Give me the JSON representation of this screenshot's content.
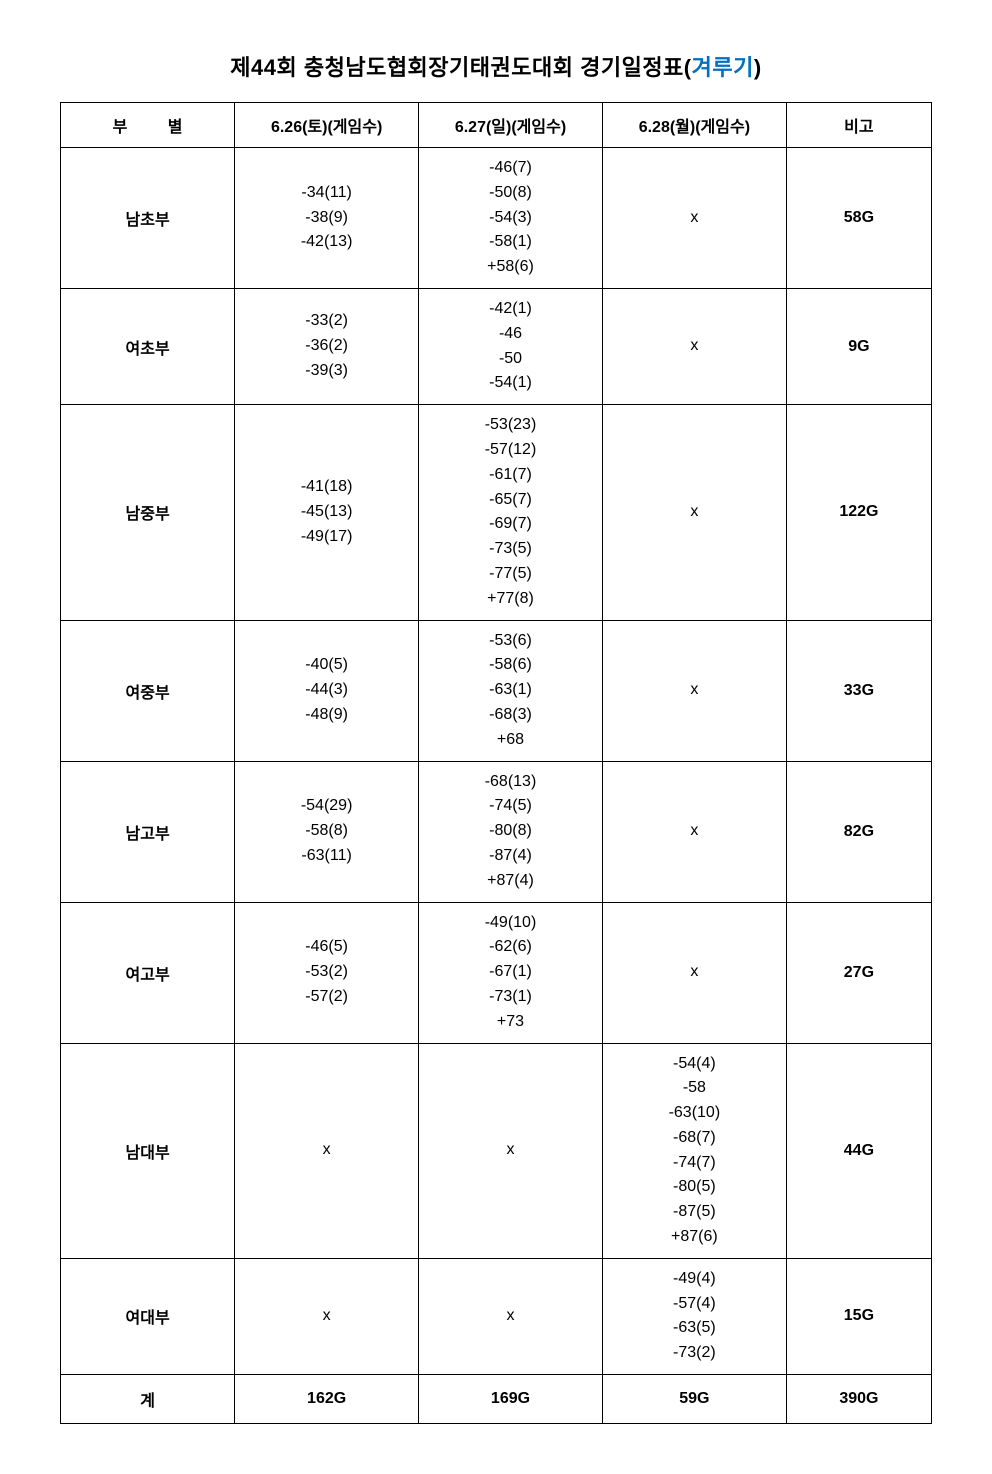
{
  "title_prefix": "제44회 충청남도협회장기태권도대회 경기일정표(",
  "title_accent": "겨루기",
  "title_suffix": ")",
  "columns": [
    "부   별",
    "6.26(토)(게임수)",
    "6.27(일)(게임수)",
    "6.28(월)(게임수)",
    "비고"
  ],
  "rows": [
    {
      "label": "남초부",
      "d1": [
        "-34(11)",
        "-38(9)",
        "-42(13)"
      ],
      "d2": [
        "-46(7)",
        "-50(8)",
        "-54(3)",
        "-58(1)",
        "+58(6)"
      ],
      "d3": [
        "x"
      ],
      "remark": "58G"
    },
    {
      "label": "여초부",
      "d1": [
        "-33(2)",
        "-36(2)",
        "-39(3)"
      ],
      "d2": [
        "-42(1)",
        "-46",
        "-50",
        "-54(1)"
      ],
      "d3": [
        "x"
      ],
      "remark": "9G"
    },
    {
      "label": "남중부",
      "d1": [
        "-41(18)",
        "-45(13)",
        "-49(17)"
      ],
      "d2": [
        "-53(23)",
        "-57(12)",
        "-61(7)",
        "-65(7)",
        "-69(7)",
        "-73(5)",
        "-77(5)",
        "+77(8)"
      ],
      "d3": [
        "x"
      ],
      "remark": "122G"
    },
    {
      "label": "여중부",
      "d1": [
        "-40(5)",
        "-44(3)",
        "-48(9)"
      ],
      "d2": [
        "-53(6)",
        "-58(6)",
        "-63(1)",
        "-68(3)",
        "+68"
      ],
      "d3": [
        "x"
      ],
      "remark": "33G"
    },
    {
      "label": "남고부",
      "d1": [
        "-54(29)",
        "-58(8)",
        "-63(11)"
      ],
      "d2": [
        "-68(13)",
        "-74(5)",
        "-80(8)",
        "-87(4)",
        "+87(4)"
      ],
      "d3": [
        "x"
      ],
      "remark": "82G"
    },
    {
      "label": "여고부",
      "d1": [
        "-46(5)",
        "-53(2)",
        "-57(2)"
      ],
      "d2": [
        "-49(10)",
        "-62(6)",
        "-67(1)",
        "-73(1)",
        "+73"
      ],
      "d3": [
        "x"
      ],
      "remark": "27G"
    },
    {
      "label": "남대부",
      "d1": [
        "x"
      ],
      "d2": [
        "x"
      ],
      "d3": [
        "-54(4)",
        "-58",
        "-63(10)",
        "-68(7)",
        "-74(7)",
        "-80(5)",
        "-87(5)",
        "+87(6)"
      ],
      "remark": "44G"
    },
    {
      "label": "여대부",
      "d1": [
        "x"
      ],
      "d2": [
        "x"
      ],
      "d3": [
        "-49(4)",
        "-57(4)",
        "-63(5)",
        "-73(2)"
      ],
      "remark": "15G"
    }
  ],
  "totals": {
    "label": "계",
    "d1": "162G",
    "d2": "169G",
    "d3": "59G",
    "remark": "390G"
  },
  "colors": {
    "text": "#000000",
    "accent": "#0070c0",
    "border": "#000000",
    "background": "#ffffff"
  },
  "typography": {
    "title_fontsize": 22,
    "cell_fontsize": 16,
    "line_height": 1.55,
    "font_family": "Malgun Gothic"
  },
  "column_widths_pct": [
    18,
    19,
    19,
    19,
    15
  ]
}
